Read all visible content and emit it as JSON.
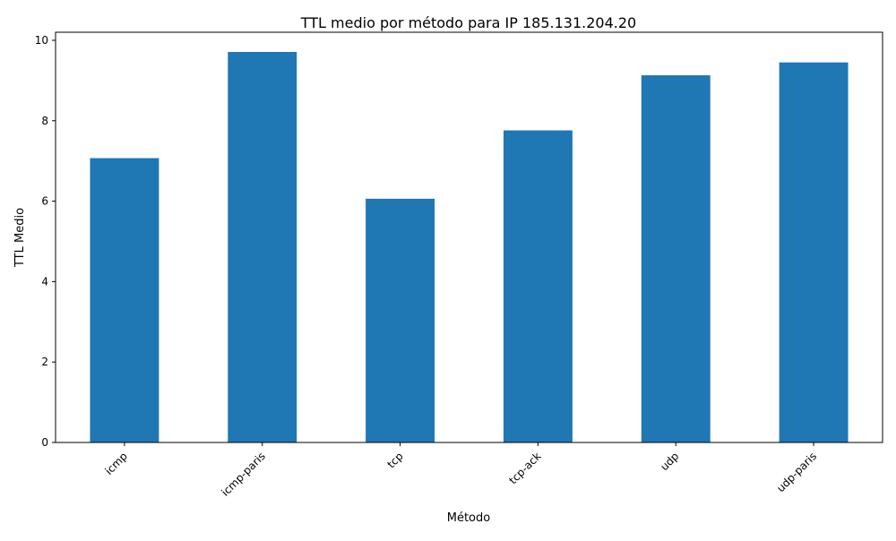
{
  "chart_data": {
    "type": "bar",
    "title": "TTL medio por método para IP 185.131.204.20",
    "xlabel": "Método",
    "ylabel": "TTL Medio",
    "categories": [
      "icmp",
      "icmp-paris",
      "tcp",
      "tcp-ack",
      "udp",
      "udp-paris"
    ],
    "values": [
      7.07,
      9.71,
      6.06,
      7.76,
      9.13,
      9.45
    ],
    "ylim": [
      0,
      10.2
    ],
    "yticks": [
      0,
      2,
      4,
      6,
      8,
      10
    ],
    "grid": false,
    "legend": "none",
    "bar_color": "#1f77b4",
    "xtick_rotation_deg": 45
  }
}
